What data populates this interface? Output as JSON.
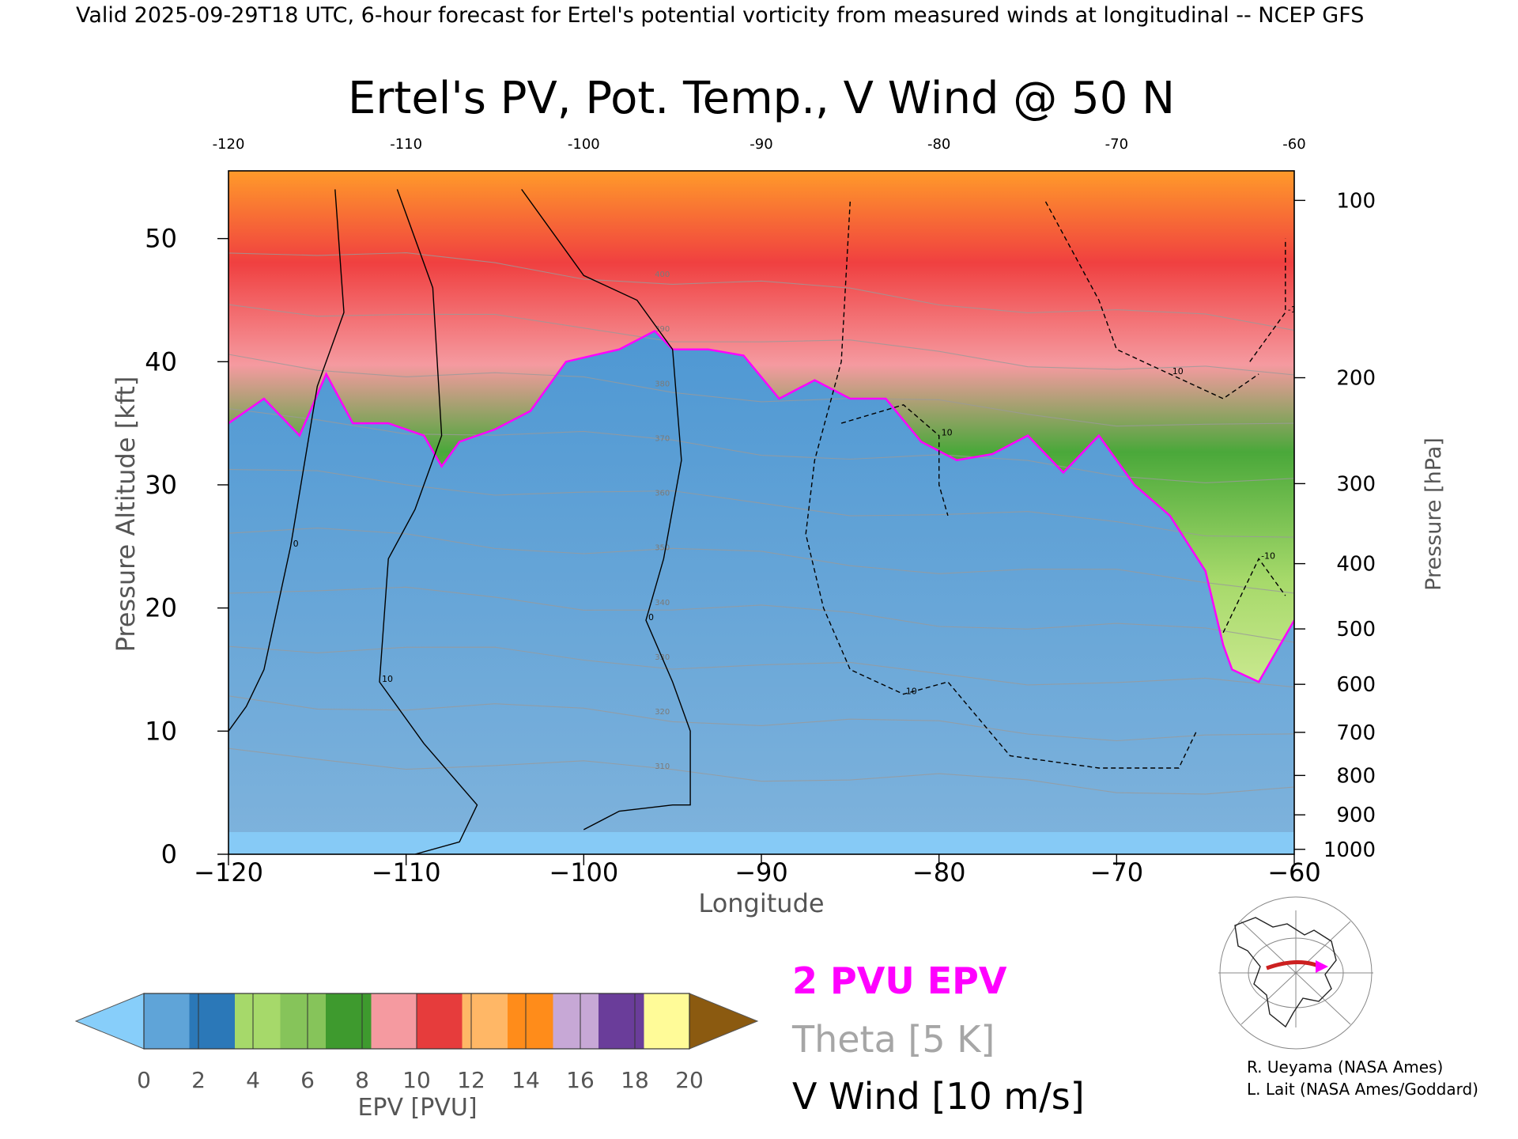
{
  "header": {
    "valid_line": "Valid 2025-09-29T18 UTC, 6-hour forecast for Ertel's potential vorticity from measured winds at longitudinal -- NCEP GFS"
  },
  "chart_data": {
    "type": "heatmap",
    "title": "Ertel's PV, Pot. Temp., V Wind @ 50 N",
    "xlabel": "Longitude",
    "ylabel": "Pressure Altitude [kft]",
    "y2label": "Pressure [hPa]",
    "xlim": [
      -120,
      -60
    ],
    "ylim": [
      0,
      55.5
    ],
    "x_ticks": [
      -120,
      -110,
      -100,
      -90,
      -80,
      -70,
      -60
    ],
    "x_tick_labels": [
      "−120",
      "−110",
      "−100",
      "−90",
      "−80",
      "−70",
      "−60"
    ],
    "top_tick_labels": [
      "-120",
      "-110",
      "-100",
      "-90",
      "-80",
      "-70",
      "-60"
    ],
    "y_ticks": [
      0,
      10,
      20,
      30,
      40,
      50
    ],
    "y_tick_labels": [
      "0",
      "10",
      "20",
      "30",
      "40",
      "50"
    ],
    "pressure_ticks": [
      {
        "hpa": 100,
        "kft": 53.1,
        "label": "100"
      },
      {
        "hpa": 200,
        "kft": 38.7,
        "label": "200"
      },
      {
        "hpa": 300,
        "kft": 30.1,
        "label": "300"
      },
      {
        "hpa": 400,
        "kft": 23.6,
        "label": "400"
      },
      {
        "hpa": 500,
        "kft": 18.3,
        "label": "500"
      },
      {
        "hpa": 600,
        "kft": 13.8,
        "label": "600"
      },
      {
        "hpa": 700,
        "kft": 9.9,
        "label": "700"
      },
      {
        "hpa": 800,
        "kft": 6.4,
        "label": "800"
      },
      {
        "hpa": 900,
        "kft": 3.2,
        "label": "900"
      },
      {
        "hpa": 1000,
        "kft": 0.4,
        "label": "1000"
      }
    ],
    "tropopause_2pvu_kft": {
      "lon": [
        -120,
        -118,
        -116,
        -114.5,
        -113,
        -111,
        -109,
        -108,
        -107,
        -105,
        -103,
        -101,
        -98,
        -96,
        -95,
        -93,
        -91,
        -89,
        -87,
        -85,
        -83,
        -81,
        -79,
        -77,
        -75,
        -73,
        -71,
        -69,
        -67,
        -65,
        -64,
        -63.5,
        -62,
        -60
      ],
      "kft": [
        35,
        37,
        34,
        39,
        35,
        35,
        34,
        31.5,
        33.5,
        34.5,
        36,
        40,
        41,
        42.5,
        41,
        41,
        40.5,
        37,
        38.5,
        37,
        37,
        33.5,
        32,
        32.5,
        34,
        31,
        34,
        30,
        27.5,
        23,
        17,
        15,
        14,
        19
      ]
    },
    "v_wind_contours": [
      {
        "label": "0",
        "lon": [
          -103.5,
          -100,
          -97,
          -95,
          -94.5,
          -95.5,
          -96.5,
          -95,
          -94,
          -94,
          -95,
          -98,
          -100
        ],
        "kft": [
          54,
          47,
          45,
          41,
          32,
          24,
          19,
          14,
          10,
          4,
          4,
          3.5,
          2
        ],
        "style": "solid"
      },
      {
        "label": "10",
        "lon": [
          -110.5,
          -108.5,
          -108,
          -109.5,
          -111,
          -111.5,
          -109,
          -106,
          -107,
          -109.5
        ],
        "kft": [
          54,
          46,
          34,
          28,
          24,
          14,
          9,
          4,
          1,
          0
        ],
        "style": "solid"
      },
      {
        "label": "0",
        "lon": [
          -114,
          -113.5,
          -115,
          -116.5,
          -118,
          -119,
          -120
        ],
        "kft": [
          54,
          44,
          38,
          25,
          15,
          12,
          10
        ],
        "style": "solid"
      },
      {
        "label": "10",
        "lon": [
          -85,
          -85.5,
          -87,
          -87.5,
          -86.5,
          -85,
          -82,
          -79.5,
          -76,
          -71,
          -66.5,
          -65.5
        ],
        "kft": [
          53,
          40,
          32,
          26,
          20,
          15,
          13,
          14,
          8,
          7,
          7,
          10
        ],
        "style": "dashed"
      },
      {
        "label": "10",
        "lon": [
          -85.5,
          -82,
          -80,
          -80,
          -79.5
        ],
        "kft": [
          35,
          36.5,
          34,
          30,
          27.5
        ],
        "style": "dashed"
      },
      {
        "label": "10",
        "lon": [
          -74,
          -71,
          -70,
          -67,
          -64,
          -62
        ],
        "kft": [
          53,
          45,
          41,
          39,
          37,
          39
        ],
        "style": "dashed"
      },
      {
        "label": "-10",
        "lon": [
          -62.5,
          -60.5,
          -60.5
        ],
        "kft": [
          40,
          44,
          50
        ],
        "style": "dashed"
      },
      {
        "label": "-10",
        "lon": [
          -64,
          -62,
          -60.5
        ],
        "kft": [
          18,
          24,
          21
        ],
        "style": "dashed"
      }
    ],
    "theta_contours_k": [
      "310",
      "320",
      "330",
      "340",
      "350",
      "360",
      "370",
      "380",
      "390",
      "400"
    ],
    "colorbar": {
      "label": "EPV [PVU]",
      "ticks": [
        "0",
        "2",
        "4",
        "6",
        "8",
        "10",
        "12",
        "14",
        "16",
        "18",
        "20"
      ],
      "colors": [
        "#87cefa",
        "#5fa4d8",
        "#2b78b8",
        "#a6d96a",
        "#86c45a",
        "#3e9a2e",
        "#f59aa0",
        "#e63c3c",
        "#ffb766",
        "#ff8c1a",
        "#c7a8d6",
        "#6a3d9a",
        "#fffb98",
        "#8b5a10"
      ]
    },
    "legend": [
      "2 PVU EPV",
      "Theta [5 K]",
      "V Wind [10 m/s]"
    ],
    "legend_colors": {
      "epv": "#ff00ff",
      "theta": "#a0a0a0",
      "vwind": "#000000"
    }
  },
  "credits": {
    "line1": "R. Ueyama (NASA Ames)",
    "line2": "L. Lait (NASA Ames/Goddard)"
  }
}
